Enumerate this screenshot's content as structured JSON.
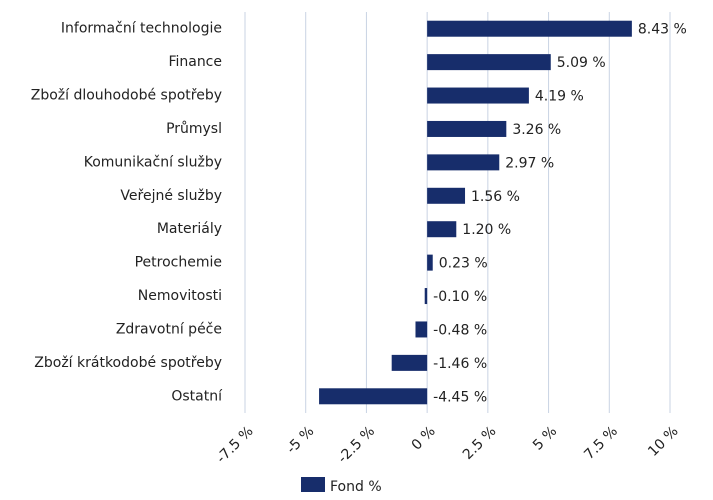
{
  "chart_data": {
    "type": "hbar",
    "categories": [
      "Informační technologie",
      "Finance",
      "Zboží dlouhodobé spotřeby",
      "Průmysl",
      "Komunikační služby",
      "Veřejné služby",
      "Materiály",
      "Petrochemie",
      "Nemovitosti",
      "Zdravotní péče",
      "Zboží krátkodobé spotřeby",
      "Ostatní"
    ],
    "series": [
      {
        "name": "Fond %",
        "color": "#172d6b",
        "values": [
          8.43,
          5.09,
          4.19,
          3.26,
          2.97,
          1.56,
          1.2,
          0.23,
          -0.1,
          -0.48,
          -1.46,
          -4.45
        ],
        "value_labels": [
          "8.43 %",
          "5.09 %",
          "4.19 %",
          "3.26 %",
          "2.97 %",
          "1.56 %",
          "1.20 %",
          "0.23 %",
          "-0.10 %",
          "-0.48 %",
          "-1.46 %",
          "-4.45 %"
        ]
      }
    ],
    "xlim": [
      -7.5,
      10
    ],
    "xticks": [
      {
        "value": -7.5,
        "label": "-7.5 %"
      },
      {
        "value": -5,
        "label": "-5 %"
      },
      {
        "value": -2.5,
        "label": "-2.5 %"
      },
      {
        "value": 0,
        "label": "0 %"
      },
      {
        "value": 2.5,
        "label": "2.5 %"
      },
      {
        "value": 5,
        "label": "5 %"
      },
      {
        "value": 7.5,
        "label": "7.5 %"
      },
      {
        "value": 10,
        "label": "10 %"
      }
    ],
    "grid": true,
    "legend": "bottom"
  }
}
